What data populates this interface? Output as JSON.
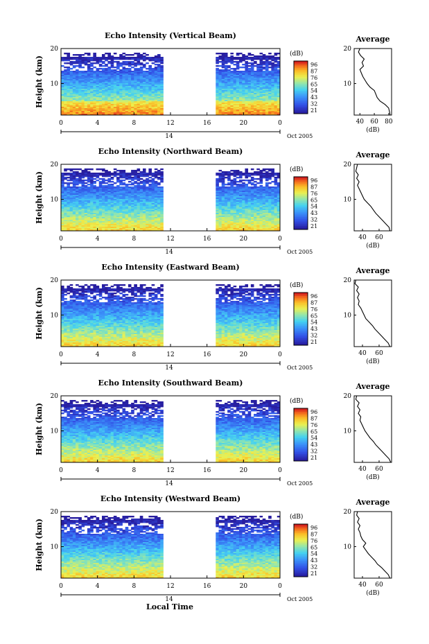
{
  "chart_data": [
    {
      "type": "heatmap",
      "title": "Echo Intensity (Vertical Beam)",
      "ylabel": "Height (km)",
      "xticks": [
        "0",
        "4",
        "8",
        "12",
        "16",
        "20",
        "0"
      ],
      "yticks": [
        "10",
        "20"
      ],
      "date_tick": "14",
      "date_label": "Oct 2005",
      "x_range_hours": [
        0,
        24
      ],
      "y_range_km": [
        1,
        20
      ],
      "data_gap_hours": [
        11.5,
        16.8
      ],
      "colorbar": {
        "unit": "(dB)",
        "ticks": [
          "96",
          "87",
          "76",
          "65",
          "54",
          "43",
          "32",
          "21"
        ]
      },
      "profile": {
        "title": "Average",
        "xticks": [
          "40",
          "60",
          "80"
        ],
        "yticks": [
          "10",
          "20"
        ],
        "xlabel": "(dB)",
        "xlim": [
          32,
          84
        ],
        "heights_km": [
          1,
          2,
          3,
          4,
          5,
          6,
          7,
          8,
          9,
          10,
          11,
          12,
          13,
          14,
          15,
          16,
          17,
          18,
          19,
          20
        ],
        "values_db": [
          82,
          81,
          80,
          75,
          68,
          64,
          62,
          60,
          54,
          50,
          47,
          44,
          42,
          40,
          45,
          43,
          46,
          41,
          38,
          40
        ]
      }
    },
    {
      "type": "heatmap",
      "title": "Echo Intensity (Northward Beam)",
      "ylabel": "Height (km)",
      "xticks": [
        "0",
        "4",
        "8",
        "12",
        "16",
        "20",
        "0"
      ],
      "yticks": [
        "10",
        "20"
      ],
      "date_tick": "14",
      "date_label": "Oct 2005",
      "x_range_hours": [
        0,
        24
      ],
      "y_range_km": [
        1,
        20
      ],
      "data_gap_hours": [
        11.5,
        16.8
      ],
      "colorbar": {
        "unit": "(dB)",
        "ticks": [
          "96",
          "87",
          "76",
          "65",
          "54",
          "43",
          "32",
          "21"
        ]
      },
      "profile": {
        "title": "Average",
        "xticks": [
          "40",
          "60"
        ],
        "yticks": [
          "10",
          "20"
        ],
        "xlabel": "(dB)",
        "xlim": [
          30,
          75
        ],
        "heights_km": [
          1,
          2,
          3,
          4,
          5,
          6,
          7,
          8,
          9,
          10,
          11,
          12,
          13,
          14,
          15,
          16,
          17,
          18,
          19,
          20
        ],
        "values_db": [
          73,
          72,
          68,
          64,
          60,
          56,
          53,
          50,
          46,
          42,
          40,
          38,
          36,
          34,
          36,
          33,
          35,
          32,
          33,
          34
        ]
      }
    },
    {
      "type": "heatmap",
      "title": "Echo Intensity (Eastward Beam)",
      "ylabel": "Height (km)",
      "xticks": [
        "0",
        "4",
        "8",
        "12",
        "16",
        "20",
        "0"
      ],
      "yticks": [
        "10",
        "20"
      ],
      "date_tick": "14",
      "date_label": "Oct 2005",
      "x_range_hours": [
        0,
        24
      ],
      "y_range_km": [
        1,
        20
      ],
      "data_gap_hours": [
        11.5,
        16.8
      ],
      "colorbar": {
        "unit": "(dB)",
        "ticks": [
          "96",
          "87",
          "76",
          "65",
          "54",
          "43",
          "32",
          "21"
        ]
      },
      "profile": {
        "title": "Average",
        "xticks": [
          "40",
          "60"
        ],
        "yticks": [
          "10",
          "20"
        ],
        "xlabel": "(dB)",
        "xlim": [
          30,
          75
        ],
        "heights_km": [
          1,
          2,
          3,
          4,
          5,
          6,
          7,
          8,
          9,
          10,
          11,
          12,
          13,
          14,
          15,
          16,
          17,
          18,
          19,
          20
        ],
        "values_db": [
          73,
          71,
          67,
          63,
          59,
          55,
          52,
          48,
          44,
          42,
          40,
          38,
          35,
          36,
          34,
          36,
          33,
          35,
          31,
          32
        ]
      }
    },
    {
      "type": "heatmap",
      "title": "Echo Intensity (Southward Beam)",
      "ylabel": "Height (km)",
      "xticks": [
        "0",
        "4",
        "8",
        "12",
        "16",
        "20",
        "0"
      ],
      "yticks": [
        "10",
        "20"
      ],
      "date_tick": "14",
      "date_label": "Oct 2005",
      "x_range_hours": [
        0,
        24
      ],
      "y_range_km": [
        1,
        20
      ],
      "data_gap_hours": [
        11.5,
        16.8
      ],
      "colorbar": {
        "unit": "(dB)",
        "ticks": [
          "96",
          "87",
          "76",
          "65",
          "54",
          "43",
          "32",
          "21"
        ]
      },
      "profile": {
        "title": "Average",
        "xticks": [
          "40",
          "60"
        ],
        "yticks": [
          "10",
          "20"
        ],
        "xlabel": "(dB)",
        "xlim": [
          30,
          75
        ],
        "heights_km": [
          1,
          2,
          3,
          4,
          5,
          6,
          7,
          8,
          9,
          10,
          11,
          12,
          13,
          14,
          15,
          16,
          17,
          18,
          19,
          20
        ],
        "values_db": [
          74,
          72,
          68,
          64,
          60,
          56,
          53,
          49,
          46,
          43,
          41,
          39,
          37,
          38,
          35,
          37,
          34,
          36,
          32,
          33
        ]
      }
    },
    {
      "type": "heatmap",
      "title": "Echo Intensity (Westward Beam)",
      "ylabel": "Height (km)",
      "xticks": [
        "0",
        "4",
        "8",
        "12",
        "16",
        "20",
        "0"
      ],
      "yticks": [
        "10",
        "20"
      ],
      "date_tick": "14",
      "date_label": "Oct 2005",
      "x_range_hours": [
        0,
        24
      ],
      "y_range_km": [
        1,
        20
      ],
      "data_gap_hours": [
        11.5,
        16.8
      ],
      "colorbar": {
        "unit": "(dB)",
        "ticks": [
          "96",
          "87",
          "76",
          "65",
          "54",
          "43",
          "32",
          "21"
        ]
      },
      "profile": {
        "title": "Average",
        "xticks": [
          "40",
          "60"
        ],
        "yticks": [
          "10",
          "20"
        ],
        "xlabel": "(dB)",
        "xlim": [
          30,
          75
        ],
        "heights_km": [
          1,
          2,
          3,
          4,
          5,
          6,
          7,
          8,
          9,
          10,
          11,
          12,
          13,
          14,
          15,
          16,
          17,
          18,
          19,
          20
        ],
        "values_db": [
          73,
          71,
          67,
          63,
          58,
          55,
          51,
          47,
          44,
          41,
          44,
          40,
          38,
          37,
          35,
          37,
          34,
          36,
          33,
          34
        ]
      }
    }
  ],
  "xlabel": "Local Time"
}
